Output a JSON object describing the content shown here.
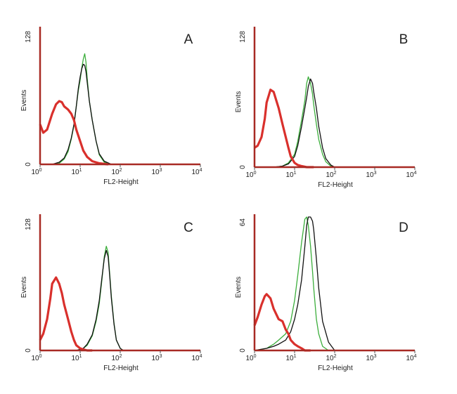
{
  "chart_data": [
    {
      "type": "line",
      "panel": "A",
      "xlabel": "FL2-Height",
      "ylabel": "Events",
      "xscale": "log",
      "xlim": [
        1,
        10000
      ],
      "ylim": [
        0,
        128
      ],
      "x_ticks": [
        {
          "base": "10",
          "exp": "0"
        },
        {
          "base": "10",
          "exp": "1"
        },
        {
          "base": "10",
          "exp": "2"
        },
        {
          "base": "10",
          "exp": "3"
        },
        {
          "base": "10",
          "exp": "4"
        }
      ],
      "y_ticks": [
        "0",
        "128"
      ],
      "grid": false,
      "legend": "none",
      "series": [
        {
          "color": "#d9302c",
          "x": [
            1,
            1.2,
            1.5,
            2,
            2.5,
            3,
            3.5,
            4,
            5,
            6,
            7,
            8,
            10,
            12,
            15,
            20,
            30,
            50
          ],
          "values": [
            38,
            30,
            33,
            48,
            57,
            60,
            59,
            55,
            52,
            48,
            42,
            33,
            22,
            13,
            7,
            3,
            1,
            0
          ]
        },
        {
          "color": "#111111",
          "x": [
            1,
            2,
            3,
            4,
            5,
            6,
            7,
            8,
            9,
            10,
            11,
            12,
            13,
            14,
            15,
            17,
            20,
            25,
            30,
            40,
            60
          ],
          "values": [
            0,
            0,
            2,
            6,
            14,
            25,
            38,
            55,
            72,
            83,
            91,
            95,
            94,
            88,
            78,
            60,
            42,
            22,
            10,
            3,
            0
          ]
        },
        {
          "color": "#3cae3c",
          "x": [
            1,
            2,
            3,
            4,
            5,
            6,
            7,
            8,
            9,
            10,
            11,
            12,
            13,
            14,
            15,
            17,
            20,
            25,
            30,
            40,
            60
          ],
          "values": [
            0,
            0,
            1,
            5,
            12,
            24,
            37,
            55,
            70,
            80,
            92,
            100,
            105,
            97,
            82,
            60,
            42,
            22,
            9,
            2,
            0
          ]
        }
      ]
    },
    {
      "type": "line",
      "panel": "B",
      "xlabel": "FL2-Height",
      "ylabel": "Events",
      "xscale": "log",
      "xlim": [
        1,
        10000
      ],
      "ylim": [
        0,
        128
      ],
      "x_ticks": [
        {
          "base": "10",
          "exp": "0"
        },
        {
          "base": "10",
          "exp": "1"
        },
        {
          "base": "10",
          "exp": "2"
        },
        {
          "base": "10",
          "exp": "3"
        },
        {
          "base": "10",
          "exp": "4"
        }
      ],
      "y_ticks": [
        "0",
        "128"
      ],
      "grid": false,
      "legend": "none",
      "series": [
        {
          "color": "#d9302c",
          "x": [
            1,
            1.2,
            1.5,
            1.8,
            2,
            2.5,
            3,
            3.5,
            4,
            5,
            6,
            7,
            8,
            10,
            12,
            15,
            20,
            30
          ],
          "values": [
            18,
            20,
            28,
            45,
            60,
            72,
            70,
            62,
            55,
            40,
            28,
            18,
            10,
            4,
            2,
            1,
            0,
            0
          ]
        },
        {
          "color": "#111111",
          "x": [
            3,
            5,
            7,
            10,
            12,
            15,
            18,
            20,
            22,
            25,
            28,
            30,
            35,
            40,
            50,
            60,
            80,
            100
          ],
          "values": [
            0,
            1,
            3,
            10,
            20,
            38,
            55,
            65,
            75,
            82,
            78,
            70,
            55,
            38,
            18,
            8,
            2,
            0
          ]
        },
        {
          "color": "#3cae3c",
          "x": [
            3,
            5,
            7,
            10,
            12,
            15,
            18,
            20,
            22,
            25,
            28,
            30,
            35,
            40,
            50,
            60,
            80,
            100
          ],
          "values": [
            0,
            1,
            4,
            12,
            24,
            44,
            62,
            78,
            84,
            78,
            68,
            58,
            40,
            26,
            12,
            5,
            1,
            0
          ]
        }
      ]
    },
    {
      "type": "line",
      "panel": "C",
      "xlabel": "FL2-Height",
      "ylabel": "Events",
      "xscale": "log",
      "xlim": [
        1,
        10000
      ],
      "ylim": [
        0,
        128
      ],
      "x_ticks": [
        {
          "base": "10",
          "exp": "0"
        },
        {
          "base": "10",
          "exp": "1"
        },
        {
          "base": "10",
          "exp": "2"
        },
        {
          "base": "10",
          "exp": "3"
        },
        {
          "base": "10",
          "exp": "4"
        }
      ],
      "y_ticks": [
        "0",
        "128"
      ],
      "grid": false,
      "legend": "none",
      "series": [
        {
          "color": "#d9302c",
          "x": [
            1,
            1.2,
            1.5,
            1.8,
            2,
            2.5,
            3,
            3.5,
            4,
            5,
            6,
            7,
            8,
            10,
            12,
            15,
            20
          ],
          "values": [
            10,
            16,
            30,
            50,
            64,
            70,
            64,
            55,
            44,
            30,
            18,
            10,
            5,
            2,
            1,
            0,
            0
          ]
        },
        {
          "color": "#111111",
          "x": [
            8,
            12,
            15,
            20,
            25,
            30,
            35,
            40,
            45,
            50,
            55,
            60,
            70,
            80,
            100,
            120
          ],
          "values": [
            0,
            2,
            6,
            15,
            30,
            48,
            70,
            88,
            96,
            90,
            70,
            50,
            25,
            10,
            2,
            0
          ]
        },
        {
          "color": "#3cae3c",
          "x": [
            8,
            12,
            15,
            20,
            25,
            30,
            35,
            40,
            45,
            50,
            55,
            60,
            70,
            80,
            100,
            120
          ],
          "values": [
            0,
            2,
            5,
            14,
            28,
            45,
            68,
            90,
            100,
            94,
            72,
            52,
            26,
            10,
            2,
            0
          ]
        }
      ]
    },
    {
      "type": "line",
      "panel": "D",
      "xlabel": "FL2-Height",
      "ylabel": "Events",
      "xscale": "log",
      "xlim": [
        1,
        10000
      ],
      "ylim": [
        0,
        64
      ],
      "x_ticks": [
        {
          "base": "10",
          "exp": "0"
        },
        {
          "base": "10",
          "exp": "1"
        },
        {
          "base": "10",
          "exp": "2"
        },
        {
          "base": "10",
          "exp": "3"
        },
        {
          "base": "10",
          "exp": "4"
        }
      ],
      "y_ticks": [
        "0",
        "64"
      ],
      "grid": false,
      "legend": "none",
      "series": [
        {
          "color": "#d9302c",
          "x": [
            1,
            1.2,
            1.5,
            1.8,
            2,
            2.5,
            3,
            4,
            5,
            6,
            7,
            8,
            10,
            12,
            15,
            18,
            20,
            25
          ],
          "values": [
            12,
            16,
            22,
            26,
            27,
            25,
            20,
            15,
            14,
            10,
            8,
            5,
            3,
            2,
            1,
            0,
            0,
            0
          ]
        },
        {
          "color": "#111111",
          "x": [
            1,
            2,
            3,
            4,
            6,
            8,
            10,
            12,
            15,
            18,
            20,
            22,
            25,
            28,
            30,
            35,
            40,
            50,
            70,
            100
          ],
          "values": [
            0,
            1,
            2,
            3,
            5,
            9,
            15,
            22,
            34,
            50,
            60,
            64,
            64,
            62,
            58,
            44,
            30,
            14,
            4,
            0
          ]
        },
        {
          "color": "#3cae3c",
          "x": [
            1,
            2,
            3,
            4,
            6,
            8,
            10,
            12,
            15,
            18,
            20,
            22,
            25,
            28,
            30,
            35,
            40,
            50,
            70
          ],
          "values": [
            0,
            1,
            3,
            5,
            8,
            14,
            24,
            36,
            52,
            63,
            64,
            60,
            50,
            38,
            30,
            15,
            8,
            2,
            0
          ]
        }
      ]
    }
  ]
}
